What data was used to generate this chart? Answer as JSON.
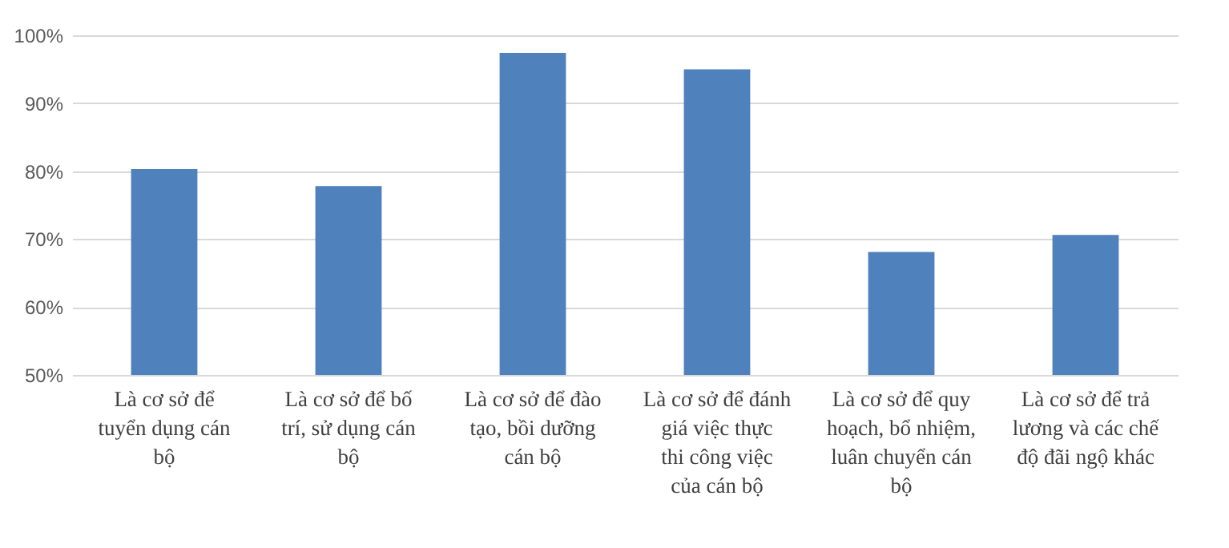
{
  "chart_data": {
    "type": "bar",
    "categories": [
      "Là cơ sở để tuyển dụng cán bộ",
      "Là cơ sở để bố trí, sử dụng cán bộ",
      "Là cơ sở để đào tạo, bồi dưỡng cán bộ",
      "Là cơ sở để đánh giá việc thực thi công việc của cán bộ",
      "Là cơ sở để quy hoạch, bổ nhiệm, luân chuyển cán bộ",
      "Là cơ sở để trả lương và các chế độ đãi ngộ khác"
    ],
    "values": [
      80.3,
      77.8,
      97.4,
      95.0,
      68.1,
      70.6
    ],
    "color": "#4f81bd",
    "ylim": [
      50,
      100
    ],
    "yticks": [
      {
        "value": 50,
        "label": "50%"
      },
      {
        "value": 60,
        "label": "60%"
      },
      {
        "value": 70,
        "label": "70%"
      },
      {
        "value": 80,
        "label": "80%"
      },
      {
        "value": 90,
        "label": "90%"
      },
      {
        "value": 100,
        "label": "100%"
      }
    ],
    "grid": "y"
  }
}
